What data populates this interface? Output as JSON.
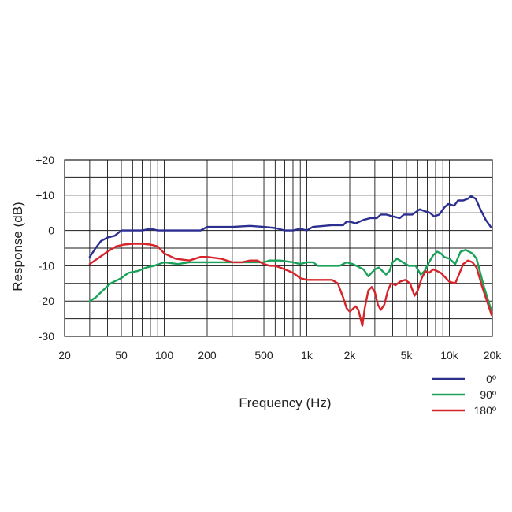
{
  "chart_data": {
    "type": "line",
    "title": "",
    "xlabel": "Frequency (Hz)",
    "ylabel": "Response (dB)",
    "x_scale": "log",
    "xlim": [
      20,
      20000
    ],
    "ylim": [
      -30,
      20
    ],
    "grid": true,
    "legend_position": "bottom-right",
    "x_ticks": [
      {
        "value": 20,
        "label": "20"
      },
      {
        "value": 50,
        "label": "50"
      },
      {
        "value": 100,
        "label": "100"
      },
      {
        "value": 200,
        "label": "200"
      },
      {
        "value": 500,
        "label": "500"
      },
      {
        "value": 1000,
        "label": "1k"
      },
      {
        "value": 2000,
        "label": "2k"
      },
      {
        "value": 5000,
        "label": "5k"
      },
      {
        "value": 10000,
        "label": "10k"
      },
      {
        "value": 20000,
        "label": "20k"
      }
    ],
    "y_ticks": [
      {
        "value": 20,
        "label": "+20"
      },
      {
        "value": 10,
        "label": "+10"
      },
      {
        "value": 0,
        "label": "0"
      },
      {
        "value": -10,
        "label": "-10"
      },
      {
        "value": -20,
        "label": "-20"
      },
      {
        "value": -30,
        "label": "-30"
      }
    ],
    "series": [
      {
        "name": "0º",
        "color": "#2b2f8f",
        "points": [
          [
            30,
            -7.5
          ],
          [
            33,
            -5
          ],
          [
            36,
            -3
          ],
          [
            40,
            -2
          ],
          [
            45,
            -1.5
          ],
          [
            50,
            0
          ],
          [
            60,
            0
          ],
          [
            70,
            0
          ],
          [
            80,
            0.5
          ],
          [
            90,
            0
          ],
          [
            100,
            0
          ],
          [
            150,
            0
          ],
          [
            180,
            0
          ],
          [
            200,
            1
          ],
          [
            300,
            1
          ],
          [
            400,
            1.3
          ],
          [
            500,
            1
          ],
          [
            600,
            0.7
          ],
          [
            700,
            0
          ],
          [
            800,
            0
          ],
          [
            900,
            0.5
          ],
          [
            1000,
            0
          ],
          [
            1100,
            1
          ],
          [
            1500,
            1.5
          ],
          [
            1800,
            1.5
          ],
          [
            1900,
            2.5
          ],
          [
            2000,
            2.5
          ],
          [
            2200,
            2
          ],
          [
            2500,
            3
          ],
          [
            2800,
            3.5
          ],
          [
            3100,
            3.5
          ],
          [
            3300,
            4.5
          ],
          [
            3600,
            4.5
          ],
          [
            4000,
            4
          ],
          [
            4500,
            3.5
          ],
          [
            4800,
            4.5
          ],
          [
            5100,
            4.5
          ],
          [
            5500,
            4.5
          ],
          [
            6200,
            6
          ],
          [
            6700,
            5.5
          ],
          [
            7300,
            5
          ],
          [
            7800,
            4
          ],
          [
            8500,
            4.5
          ],
          [
            9200,
            6.5
          ],
          [
            9800,
            7.5
          ],
          [
            10800,
            7
          ],
          [
            11500,
            8.5
          ],
          [
            12500,
            8.5
          ],
          [
            13500,
            9
          ],
          [
            14200,
            9.7
          ],
          [
            15300,
            9
          ],
          [
            16500,
            6
          ],
          [
            18000,
            3
          ],
          [
            19500,
            1
          ]
        ]
      },
      {
        "name": "90º",
        "color": "#1aa25a",
        "points": [
          [
            30,
            -20
          ],
          [
            33,
            -19
          ],
          [
            36,
            -17.5
          ],
          [
            42,
            -15
          ],
          [
            50,
            -13.5
          ],
          [
            56,
            -12
          ],
          [
            65,
            -11.5
          ],
          [
            75,
            -10.5
          ],
          [
            85,
            -10
          ],
          [
            100,
            -9
          ],
          [
            125,
            -9.5
          ],
          [
            150,
            -9
          ],
          [
            180,
            -9
          ],
          [
            200,
            -9
          ],
          [
            300,
            -9
          ],
          [
            400,
            -9
          ],
          [
            500,
            -9
          ],
          [
            550,
            -8.5
          ],
          [
            650,
            -8.5
          ],
          [
            800,
            -9
          ],
          [
            900,
            -9.5
          ],
          [
            1000,
            -9
          ],
          [
            1100,
            -9
          ],
          [
            1200,
            -10
          ],
          [
            1500,
            -10
          ],
          [
            1700,
            -10
          ],
          [
            1900,
            -9
          ],
          [
            2100,
            -9.5
          ],
          [
            2500,
            -11
          ],
          [
            2700,
            -13
          ],
          [
            3000,
            -11
          ],
          [
            3200,
            -10.5
          ],
          [
            3600,
            -12.5
          ],
          [
            3800,
            -11.5
          ],
          [
            4000,
            -9
          ],
          [
            4300,
            -8
          ],
          [
            4700,
            -9
          ],
          [
            5200,
            -10
          ],
          [
            5800,
            -10
          ],
          [
            6300,
            -12.5
          ],
          [
            6700,
            -11.5
          ],
          [
            7200,
            -9
          ],
          [
            7700,
            -7
          ],
          [
            8200,
            -6
          ],
          [
            8700,
            -6.5
          ],
          [
            9200,
            -7.5
          ],
          [
            10000,
            -8
          ],
          [
            11000,
            -9.5
          ],
          [
            12000,
            -6
          ],
          [
            13000,
            -5.5
          ],
          [
            14500,
            -6.5
          ],
          [
            15500,
            -8
          ],
          [
            17500,
            -16
          ],
          [
            19800,
            -23
          ]
        ]
      },
      {
        "name": "180º",
        "color": "#d6252a",
        "points": [
          [
            30,
            -9.5
          ],
          [
            34,
            -8
          ],
          [
            40,
            -6
          ],
          [
            46,
            -4.5
          ],
          [
            52,
            -4
          ],
          [
            60,
            -3.8
          ],
          [
            70,
            -3.8
          ],
          [
            80,
            -4
          ],
          [
            90,
            -4.5
          ],
          [
            100,
            -6.5
          ],
          [
            120,
            -8
          ],
          [
            150,
            -8.5
          ],
          [
            180,
            -7.5
          ],
          [
            200,
            -7.5
          ],
          [
            250,
            -8
          ],
          [
            300,
            -9
          ],
          [
            350,
            -9
          ],
          [
            400,
            -8.5
          ],
          [
            450,
            -8.5
          ],
          [
            500,
            -9.5
          ],
          [
            550,
            -10
          ],
          [
            600,
            -10
          ],
          [
            700,
            -11
          ],
          [
            800,
            -12
          ],
          [
            900,
            -13.5
          ],
          [
            1000,
            -14
          ],
          [
            1100,
            -14
          ],
          [
            1300,
            -14
          ],
          [
            1500,
            -14
          ],
          [
            1650,
            -15
          ],
          [
            1800,
            -19
          ],
          [
            1900,
            -22
          ],
          [
            2000,
            -23
          ],
          [
            2200,
            -21.5
          ],
          [
            2300,
            -22.5
          ],
          [
            2450,
            -27
          ],
          [
            2550,
            -22
          ],
          [
            2700,
            -17
          ],
          [
            2850,
            -16
          ],
          [
            3000,
            -17.5
          ],
          [
            3150,
            -21
          ],
          [
            3300,
            -22.5
          ],
          [
            3500,
            -21
          ],
          [
            3700,
            -17
          ],
          [
            3900,
            -15
          ],
          [
            4200,
            -15.5
          ],
          [
            4500,
            -14.5
          ],
          [
            4900,
            -14
          ],
          [
            5300,
            -15
          ],
          [
            5700,
            -18.5
          ],
          [
            6000,
            -17
          ],
          [
            6400,
            -13.5
          ],
          [
            6800,
            -11.5
          ],
          [
            7200,
            -12
          ],
          [
            7700,
            -11
          ],
          [
            8200,
            -11.5
          ],
          [
            8700,
            -12
          ],
          [
            9200,
            -13
          ],
          [
            10000,
            -14.5
          ],
          [
            11000,
            -15
          ],
          [
            11800,
            -12
          ],
          [
            12500,
            -9.5
          ],
          [
            13500,
            -8.5
          ],
          [
            14500,
            -9
          ],
          [
            15500,
            -10.5
          ],
          [
            17000,
            -16
          ],
          [
            19800,
            -24
          ]
        ]
      }
    ]
  }
}
